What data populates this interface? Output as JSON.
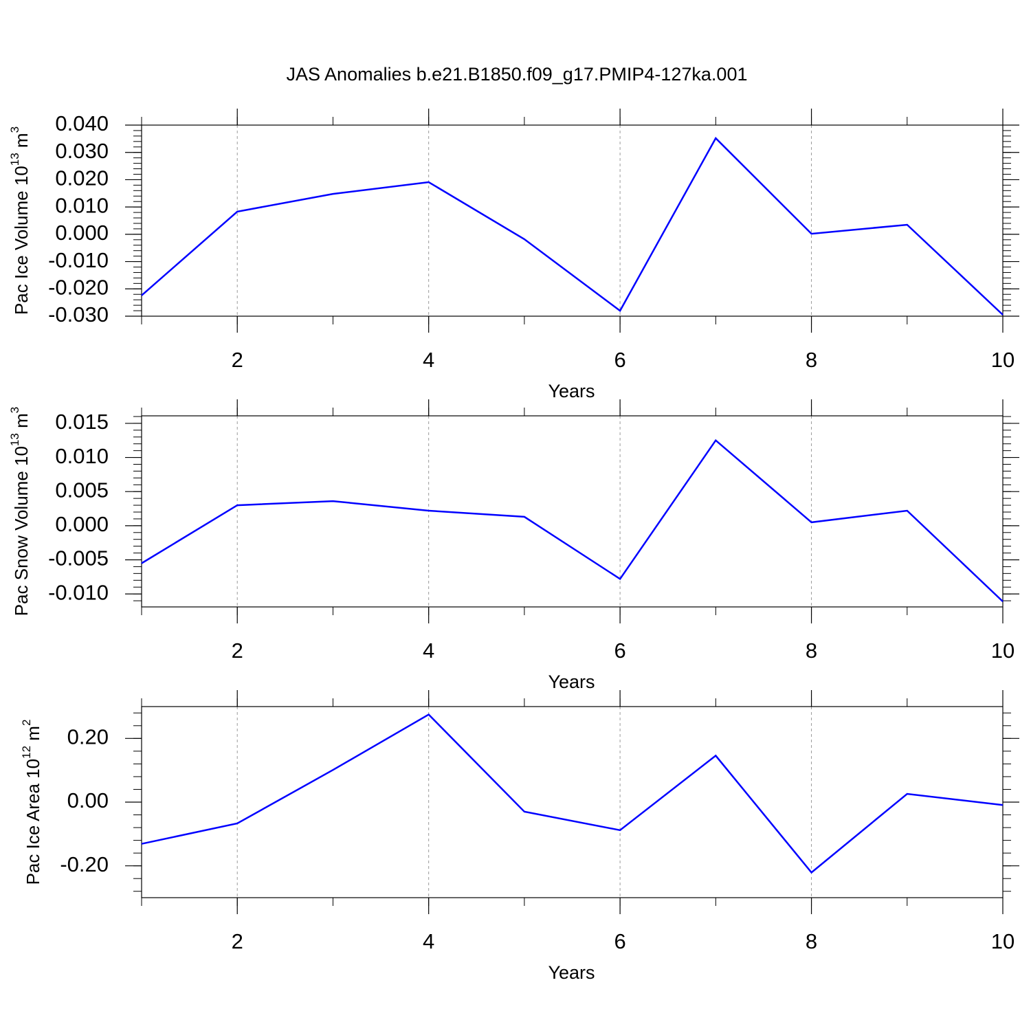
{
  "title": "JAS Anomalies b.e21.B1850.f09_g17.PMIP4-127ka.001",
  "chart_data": [
    {
      "type": "line",
      "xlabel": "Years",
      "ylabel": {
        "text": "Pac Ice Volume 10",
        "exponent": "13",
        "unit": " m",
        "unit_exponent": "3"
      },
      "x": [
        1,
        2,
        3,
        4,
        5,
        6,
        7,
        8,
        9,
        10
      ],
      "values": [
        -0.0224,
        0.0083,
        0.0148,
        0.0191,
        -0.0018,
        -0.028,
        0.0352,
        0.0002,
        0.0035,
        -0.0295
      ],
      "color": "#0000ff",
      "xgrid": true,
      "xlim": [
        1,
        10
      ],
      "xticks": [
        2,
        4,
        6,
        8,
        10
      ],
      "ylim": [
        -0.03,
        0.04
      ],
      "yticks": [
        {
          "value": -0.03,
          "label": "-0.030"
        },
        {
          "value": -0.02,
          "label": "-0.020"
        },
        {
          "value": -0.01,
          "label": "-0.010"
        },
        {
          "value": 0,
          "label": "0.000"
        },
        {
          "value": 0.01,
          "label": "0.010"
        },
        {
          "value": 0.02,
          "label": "0.020"
        },
        {
          "value": 0.03,
          "label": "0.030"
        },
        {
          "value": 0.04,
          "label": "0.040"
        }
      ]
    },
    {
      "type": "line",
      "xlabel": "Years",
      "ylabel": {
        "text": "Pac Snow Volume 10",
        "exponent": "13",
        "unit": " m",
        "unit_exponent": "3"
      },
      "x": [
        1,
        2,
        3,
        4,
        5,
        6,
        7,
        8,
        9,
        10
      ],
      "values": [
        -0.0055,
        0.003,
        0.0036,
        0.0022,
        0.0013,
        -0.0078,
        0.0125,
        0.0005,
        0.0022,
        -0.0111
      ],
      "color": "#0000ff",
      "xgrid": true,
      "xlim": [
        1,
        10
      ],
      "xticks": [
        2,
        4,
        6,
        8,
        10
      ],
      "ylim": [
        -0.0119,
        0.0161
      ],
      "yticks": [
        {
          "value": -0.01,
          "label": "-0.010"
        },
        -0.005,
        {
          "value": 0,
          "label": "0.000"
        },
        0.005,
        {
          "value": 0.01,
          "label": "0.010"
        },
        0.015
      ]
    },
    {
      "type": "line",
      "xlabel": "Years",
      "ylabel": {
        "text": "Pac Ice Area 10",
        "exponent": "12",
        "unit": " m",
        "unit_exponent": "2"
      },
      "x": [
        1,
        2,
        3,
        4,
        5,
        6,
        7,
        8,
        9,
        10
      ],
      "values": [
        -0.131,
        -0.067,
        0.101,
        0.275,
        -0.03,
        -0.088,
        0.146,
        -0.221,
        0.026,
        -0.009
      ],
      "color": "#0000ff",
      "xgrid": true,
      "xlim": [
        1,
        10
      ],
      "xticks": [
        2,
        4,
        6,
        8,
        10
      ],
      "ylim": [
        -0.3,
        0.3
      ],
      "yticks": [
        {
          "value": -0.2,
          "label": "-0.20"
        },
        {
          "value": 0,
          "label": "0.00"
        },
        {
          "value": 0.2,
          "label": "0.20"
        }
      ]
    }
  ]
}
